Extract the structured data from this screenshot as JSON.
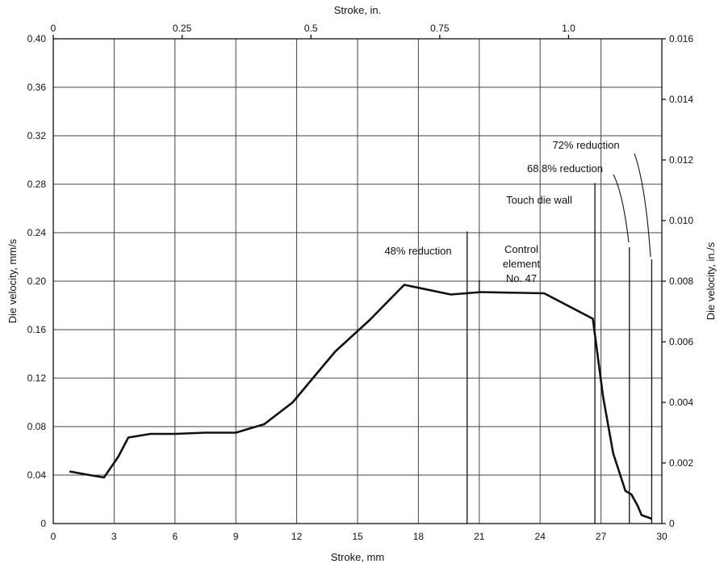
{
  "chart_data": {
    "type": "line",
    "title": "",
    "xlabel": "Stroke, mm",
    "ylabel": "Die velocity, mm/s",
    "x2label": "Stroke, in.",
    "y2label": "Die velocity, in./s",
    "xlim": [
      0,
      30
    ],
    "ylim": [
      0,
      0.4
    ],
    "x2lim": [
      0,
      1.181
    ],
    "y2lim": [
      0,
      0.016
    ],
    "grid": true,
    "x_ticks": [
      "0",
      "3",
      "6",
      "9",
      "12",
      "15",
      "18",
      "21",
      "24",
      "27",
      "30"
    ],
    "y_ticks": [
      "0",
      "0.04",
      "0.08",
      "0.12",
      "0.16",
      "0.20",
      "0.24",
      "0.28",
      "0.32",
      "0.36",
      "0.40"
    ],
    "x2_ticks": [
      {
        "value": 0,
        "label": "0"
      },
      {
        "value": 0.25,
        "label": "0.25"
      },
      {
        "value": 0.5,
        "label": "0.5"
      },
      {
        "value": 0.75,
        "label": "0.75"
      },
      {
        "value": 1.0,
        "label": "1.0"
      }
    ],
    "y2_ticks": [
      {
        "value": 0,
        "label": "0"
      },
      {
        "value": 0.002,
        "label": "0.002"
      },
      {
        "value": 0.004,
        "label": "0.004"
      },
      {
        "value": 0.006,
        "label": "0.006"
      },
      {
        "value": 0.008,
        "label": "0.008"
      },
      {
        "value": 0.01,
        "label": "0.010"
      },
      {
        "value": 0.012,
        "label": "0.012"
      },
      {
        "value": 0.014,
        "label": "0.014"
      },
      {
        "value": 0.016,
        "label": "0.016"
      }
    ],
    "series": [
      {
        "x": [
          0.8,
          1.8,
          2.5,
          3.2,
          3.7,
          4.8,
          6.0,
          7.5,
          9.0,
          10.4,
          11.8,
          12.9,
          13.9,
          15.6,
          17.3,
          19.6,
          21.1,
          24.2,
          26.6,
          27.1,
          27.6,
          28.2,
          28.5,
          28.8,
          29.0,
          29.5
        ],
        "y": [
          0.043,
          0.04,
          0.038,
          0.055,
          0.071,
          0.074,
          0.074,
          0.075,
          0.075,
          0.082,
          0.1,
          0.122,
          0.142,
          0.168,
          0.197,
          0.189,
          0.191,
          0.19,
          0.169,
          0.105,
          0.058,
          0.027,
          0.024,
          0.015,
          0.007,
          0.004
        ]
      }
    ],
    "annotations": [
      {
        "id": "reduction-48",
        "text": "48% reduction",
        "x": 20.4
      },
      {
        "id": "control-element",
        "lines": [
          "Control",
          "element",
          "No. 47"
        ],
        "x": 21.0
      },
      {
        "id": "touch-die-wall",
        "text": "Touch die wall",
        "x": 26.7
      },
      {
        "id": "reduction-688",
        "text": "68.8% reduction",
        "x": 28.4
      },
      {
        "id": "reduction-72",
        "text": "72% reduction",
        "x": 29.5
      }
    ]
  }
}
